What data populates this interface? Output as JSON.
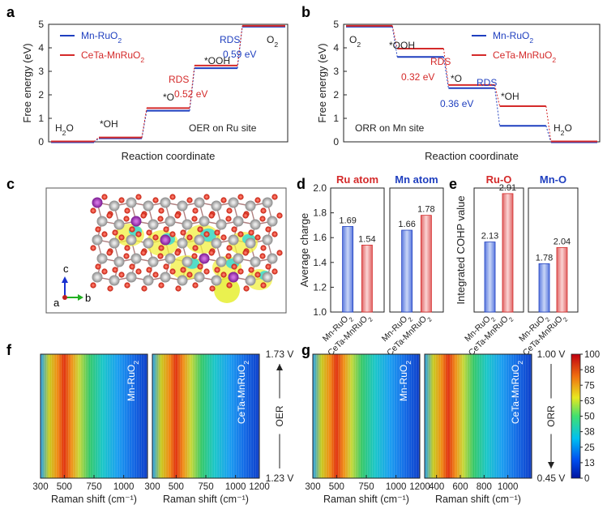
{
  "panels": {
    "a": {
      "letter": "a"
    },
    "b": {
      "letter": "b"
    },
    "c": {
      "letter": "c",
      "axes": {
        "a": "a",
        "b": "b",
        "c": "c"
      }
    },
    "d": {
      "letter": "d"
    },
    "e": {
      "letter": "e"
    },
    "f": {
      "letter": "f"
    },
    "g": {
      "letter": "g"
    }
  },
  "colors": {
    "mn": "#1f3fbf",
    "ceta": "#d42a2a",
    "bar_mn": "#7b95e8",
    "bar_ceta": "#ef8c8c"
  },
  "chart_data": [
    {
      "panel": "a",
      "type": "line",
      "ylabel": "Free energy (eV)",
      "xlabel": "Reaction coordinate",
      "ylim": [
        0,
        5
      ],
      "yticks": [
        0,
        1,
        2,
        3,
        4,
        5
      ],
      "annotation": "OER on Ru site",
      "state_labels": [
        "H2O",
        "*OH",
        "*O",
        "*OOH",
        "O2"
      ],
      "series": [
        {
          "name": "Mn-RuO2",
          "values": [
            0,
            0.17,
            1.34,
            3.15,
            4.92
          ]
        },
        {
          "name": "CeTa-MnRuO2",
          "values": [
            0,
            0.17,
            1.42,
            3.23,
            4.92
          ]
        }
      ],
      "rds_labels": [
        {
          "text": "RDS",
          "value": "0.52 eV",
          "series": "CeTa-MnRuO2"
        },
        {
          "text": "RDS",
          "value": "0.59 eV",
          "series": "Mn-RuO2"
        }
      ]
    },
    {
      "panel": "b",
      "type": "line",
      "ylabel": "Free energy (eV)",
      "xlabel": "Reaction coordinate",
      "ylim": [
        0,
        5
      ],
      "yticks": [
        0,
        1,
        2,
        3,
        4,
        5
      ],
      "annotation": "ORR on Mn site",
      "state_labels": [
        "O2",
        "*OOH",
        "*O",
        "*OH",
        "H2O"
      ],
      "series": [
        {
          "name": "Mn-RuO2",
          "values": [
            4.92,
            3.63,
            2.3,
            0.7,
            0
          ]
        },
        {
          "name": "CeTa-MnRuO2",
          "values": [
            4.92,
            3.95,
            2.4,
            1.5,
            0
          ]
        }
      ],
      "rds_labels": [
        {
          "text": "RDS",
          "value": "0.32 eV",
          "series": "CeTa-MnRuO2"
        },
        {
          "text": "RDS",
          "value": "0.36 eV",
          "series": "Mn-RuO2"
        }
      ]
    },
    {
      "panel": "d",
      "type": "bar",
      "ylabel": "Average charge",
      "ylim": [
        1.0,
        2.0
      ],
      "yticks": [
        "1.0",
        "1.2",
        "1.4",
        "1.6",
        "1.8",
        "2.0"
      ],
      "groups": [
        {
          "title": "Ru atom",
          "title_color": "#d42a2a",
          "categories": [
            "Mn-RuO2",
            "CeTa-MnRuO2"
          ],
          "values": [
            1.69,
            1.54
          ],
          "labels": [
            "1.69",
            "1.54"
          ]
        },
        {
          "title": "Mn atom",
          "title_color": "#1f3fbf",
          "categories": [
            "Mn-RuO2",
            "CeTa-MnRuO2"
          ],
          "values": [
            1.66,
            1.78
          ],
          "labels": [
            "1.66",
            "1.78"
          ]
        }
      ]
    },
    {
      "panel": "e",
      "type": "bar",
      "ylabel": "Integrated COHP value",
      "ylim": [
        1.0,
        3.0
      ],
      "groups": [
        {
          "title": "Ru-O",
          "title_color": "#d42a2a",
          "categories": [
            "Mn-RuO2",
            "CeTa-MnRuO2"
          ],
          "values": [
            2.13,
            2.91
          ],
          "labels": [
            "2.13",
            "2.91"
          ]
        },
        {
          "title": "Mn-O",
          "title_color": "#1f3fbf",
          "categories": [
            "Mn-RuO2",
            "CeTa-MnRuO2"
          ],
          "values": [
            1.78,
            2.04
          ],
          "labels": [
            "1.78",
            "2.04"
          ]
        }
      ]
    },
    {
      "panel": "f",
      "type": "heatmap",
      "xlabel": "Raman shift (cm⁻¹)",
      "maps": [
        {
          "title": "Mn-RuO2",
          "xlim": [
            300,
            1200
          ],
          "xticks": [
            "300",
            "500",
            "750",
            "1000"
          ]
        },
        {
          "title": "CeTa-MnRuO2",
          "xlim": [
            300,
            1200
          ],
          "xticks": [
            "300",
            "500",
            "750",
            "1000",
            "1200"
          ]
        }
      ],
      "potential_axis": {
        "label": "OER",
        "top": "1.73 V",
        "bottom": "1.23 V"
      }
    },
    {
      "panel": "g",
      "type": "heatmap",
      "xlabel": "Raman shift (cm⁻¹)",
      "maps": [
        {
          "title": "Mn-RuO2",
          "xlim": [
            300,
            1200
          ],
          "xticks": [
            "300",
            "500",
            "750",
            "1000",
            "1200"
          ]
        },
        {
          "title": "CeTa-MnRuO2",
          "xlim": [
            300,
            1200
          ],
          "xticks": [
            "400",
            "600",
            "800",
            "1000"
          ]
        }
      ],
      "potential_axis": {
        "label": "ORR",
        "top": "1.00 V",
        "bottom": "0.45 V"
      },
      "colorbar": {
        "min": 0,
        "max": 100,
        "ticks": [
          "100",
          "88",
          "75",
          "63",
          "50",
          "38",
          "25",
          "13",
          "0"
        ]
      }
    }
  ]
}
